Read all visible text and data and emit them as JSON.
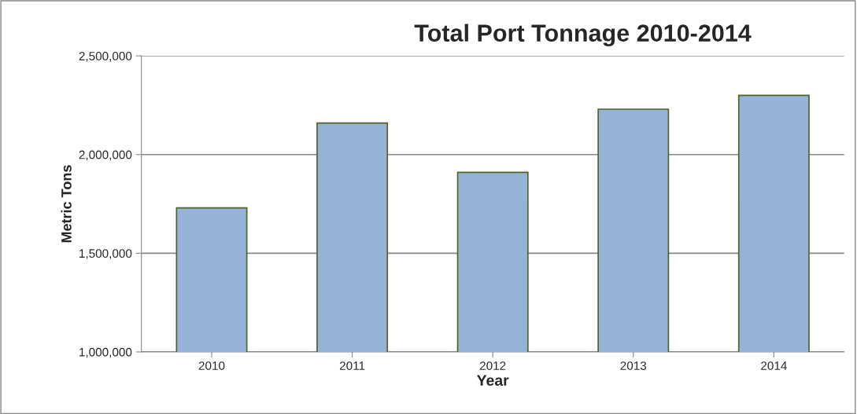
{
  "chart_data": {
    "type": "bar",
    "title": "Total Port Tonnage 2010-2014",
    "xlabel": "Year",
    "ylabel": "Metric Tons",
    "categories": [
      "2010",
      "2011",
      "2012",
      "2013",
      "2014"
    ],
    "values": [
      1730000,
      2160000,
      1910000,
      2230000,
      2300000
    ],
    "color": "#95b3d7",
    "ylim": [
      1000000,
      2500000
    ],
    "yticks": [
      {
        "value": 1000000,
        "label": "1,000,000"
      },
      {
        "value": 1500000,
        "label": "1,500,000"
      },
      {
        "value": 2000000,
        "label": "2,000,000"
      },
      {
        "value": 2500000,
        "label": "2,500,000"
      }
    ],
    "grid": "y",
    "legend": false
  }
}
